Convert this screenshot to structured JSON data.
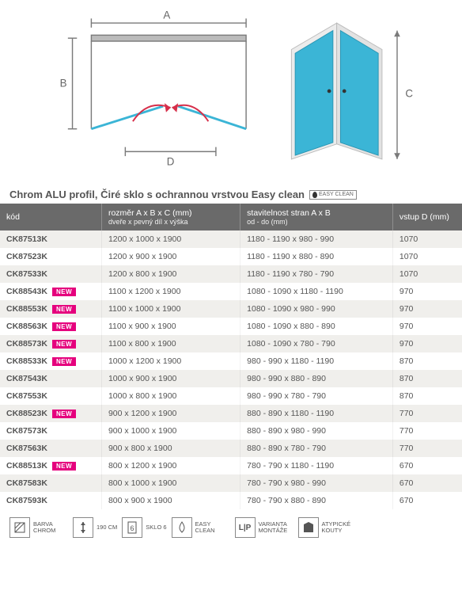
{
  "diagram": {
    "labels": {
      "A": "A",
      "B": "B",
      "C": "C",
      "D": "D"
    },
    "line_color": "#7a7a7a",
    "panel_color": "#3bb5d6",
    "arrow_color": "#d62f4a",
    "background": "#ffffff"
  },
  "title": "Chrom ALU profil, Čiré sklo s ochrannou vrstvou Easy clean",
  "easy_badge": "EASY CLEAN",
  "table": {
    "header_bg": "#6a6a6a",
    "row_alt_bg": "#f0efec",
    "row_bg": "#ffffff",
    "text_color": "#555555",
    "new_badge_color": "#e5007d",
    "columns": [
      {
        "key": "kod",
        "label": "kód",
        "sub": ""
      },
      {
        "key": "rozmer",
        "label": "rozměr A x B x C (mm)",
        "sub": "dveře x pevný díl x výška"
      },
      {
        "key": "stav",
        "label": "stavitelnost stran A x B",
        "sub": "od - do (mm)"
      },
      {
        "key": "vstup",
        "label": "vstup D (mm)",
        "sub": ""
      }
    ],
    "rows": [
      {
        "kod": "CK87513K",
        "new": false,
        "rozmer": "1200 x 1000 x 1900",
        "stav": "1180 - 1190 x 980 - 990",
        "vstup": "1070"
      },
      {
        "kod": "CK87523K",
        "new": false,
        "rozmer": "1200 x 900 x 1900",
        "stav": "1180 - 1190 x 880 - 890",
        "vstup": "1070"
      },
      {
        "kod": "CK87533K",
        "new": false,
        "rozmer": "1200 x 800 x 1900",
        "stav": "1180 - 1190 x 780 - 790",
        "vstup": "1070"
      },
      {
        "kod": "CK88543K",
        "new": true,
        "rozmer": "1100 x 1200 x 1900",
        "stav": "1080 - 1090 x 1180 - 1190",
        "vstup": "970"
      },
      {
        "kod": "CK88553K",
        "new": true,
        "rozmer": "1100 x 1000 x 1900",
        "stav": "1080 - 1090 x 980 - 990",
        "vstup": "970"
      },
      {
        "kod": "CK88563K",
        "new": true,
        "rozmer": "1100 x 900 x 1900",
        "stav": "1080 - 1090 x 880 - 890",
        "vstup": "970"
      },
      {
        "kod": "CK88573K",
        "new": true,
        "rozmer": "1100 x 800 x 1900",
        "stav": "1080 - 1090 x 780 - 790",
        "vstup": "970"
      },
      {
        "kod": "CK88533K",
        "new": true,
        "rozmer": "1000 x 1200 x 1900",
        "stav": "980 - 990 x 1180 - 1190",
        "vstup": "870"
      },
      {
        "kod": "CK87543K",
        "new": false,
        "rozmer": "1000 x 900 x 1900",
        "stav": "980 - 990 x 880 - 890",
        "vstup": "870"
      },
      {
        "kod": "CK87553K",
        "new": false,
        "rozmer": "1000 x 800 x 1900",
        "stav": "980 - 990 x 780 - 790",
        "vstup": "870"
      },
      {
        "kod": "CK88523K",
        "new": true,
        "rozmer": "900 x 1200 x 1900",
        "stav": "880 - 890 x 1180 - 1190",
        "vstup": "770"
      },
      {
        "kod": "CK87573K",
        "new": false,
        "rozmer": "900 x 1000 x 1900",
        "stav": "880 - 890 x 980 - 990",
        "vstup": "770"
      },
      {
        "kod": "CK87563K",
        "new": false,
        "rozmer": "900 x 800 x 1900",
        "stav": "880 - 890 x 780 - 790",
        "vstup": "770"
      },
      {
        "kod": "CK88513K",
        "new": true,
        "rozmer": "800 x 1200 x 1900",
        "stav": "780 - 790 x 1180 - 1190",
        "vstup": "670"
      },
      {
        "kod": "CK87583K",
        "new": false,
        "rozmer": "800 x 1000 x 1900",
        "stav": "780 - 790 x 980 - 990",
        "vstup": "670"
      },
      {
        "kod": "CK87593K",
        "new": false,
        "rozmer": "800 x 900 x 1900",
        "stav": "780 - 790 x 880 - 890",
        "vstup": "670"
      }
    ]
  },
  "new_label": "NEW",
  "features": [
    {
      "icon": "chrom",
      "label": "BARVA CHROM"
    },
    {
      "icon": "height",
      "label": "190 CM"
    },
    {
      "icon": "glass",
      "label": "SKLO 6"
    },
    {
      "icon": "drop",
      "label": "EASY CLEAN"
    },
    {
      "icon": "lp",
      "label": "VARIANTA MONTÁŽE"
    },
    {
      "icon": "corner",
      "label": "ATYPICKÉ KOUTY"
    }
  ]
}
